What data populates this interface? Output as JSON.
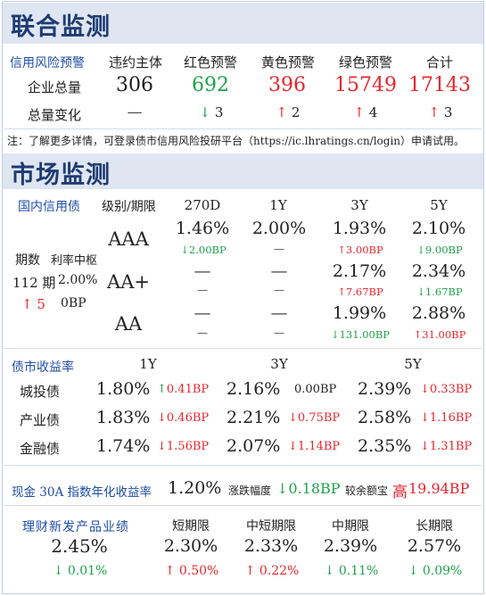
{
  "section1": {
    "title": "联合监测",
    "row_label": "信用风险预警",
    "columns": [
      "违约主体",
      "红色预警",
      "黄色预警",
      "绿色预警",
      "合计"
    ],
    "total_label": "企业总量",
    "totals": [
      "306",
      "692",
      "396",
      "15749",
      "17143"
    ],
    "change_label": "总量变化",
    "changes": [
      "—",
      "3",
      "2",
      "4",
      "3"
    ],
    "note": "注：了解更多详情，可登录债市信用风险投研平台（https://ic.lhratings.cn/login）申请试用。"
  },
  "section2": {
    "title": "市场监测",
    "domestic": {
      "label": "国内信用债",
      "grade_header": "级别/期限",
      "tenors": [
        "270D",
        "1Y",
        "3Y",
        "5Y"
      ],
      "issue_label": "期数",
      "rate_label": "利率中枢",
      "issue_count": "112 期",
      "rate_center": "2.00%",
      "issue_change": "5",
      "rate_change": "0BP",
      "grades": [
        {
          "name": "AAA",
          "values": [
            "1.46%",
            "2.00%",
            "1.93%",
            "2.10%"
          ],
          "changes": [
            "2.00BP",
            "—",
            "3.00BP",
            "9.00BP"
          ]
        },
        {
          "name": "AA+",
          "values": [
            "—",
            "—",
            "2.17%",
            "2.34%"
          ],
          "changes": [
            "—",
            "—",
            "7.67BP",
            "1.67BP"
          ]
        },
        {
          "name": "AA",
          "values": [
            "—",
            "—",
            "1.99%",
            "2.88%"
          ],
          "changes": [
            "—",
            "—",
            "131.00BP",
            "31.00BP"
          ]
        }
      ]
    },
    "yields": {
      "label": "债市收益率",
      "tenors": [
        "1Y",
        "3Y",
        "5Y"
      ],
      "rows": [
        {
          "name": "城投债",
          "values": [
            "1.80%",
            "2.16%",
            "2.39%"
          ],
          "changes": [
            "0.41BP",
            "0.00BP",
            "0.33BP"
          ]
        },
        {
          "name": "产业债",
          "values": [
            "1.83%",
            "2.21%",
            "2.58%"
          ],
          "changes": [
            "0.46BP",
            "0.75BP",
            "1.16BP"
          ]
        },
        {
          "name": "金融债",
          "values": [
            "1.74%",
            "2.07%",
            "2.35%"
          ],
          "changes": [
            "1.56BP",
            "1.14BP",
            "1.31BP"
          ]
        }
      ]
    },
    "cash": {
      "label": "现金 30A 指数年化收益率",
      "value": "1.20%",
      "change_label": "涨跌幅度",
      "change": "0.18BP",
      "compare_label": "较余额宝",
      "compare_word": "高",
      "compare_value": "19.94BP"
    },
    "wealth": {
      "label": "理财新发产品业绩",
      "overall_value": "2.45%",
      "overall_change": "0.01%",
      "terms": [
        "短期限",
        "中短期限",
        "中期限",
        "长期限"
      ],
      "values": [
        "2.30%",
        "2.33%",
        "2.39%",
        "2.57%"
      ],
      "changes": [
        "0.50%",
        "0.22%",
        "0.11%",
        "0.09%"
      ]
    }
  },
  "colors": {
    "up": "#e8262d",
    "down": "#1fa24a",
    "accent": "#1f4ea8",
    "title": "#1e3c72",
    "band": "#dfe6f2"
  }
}
